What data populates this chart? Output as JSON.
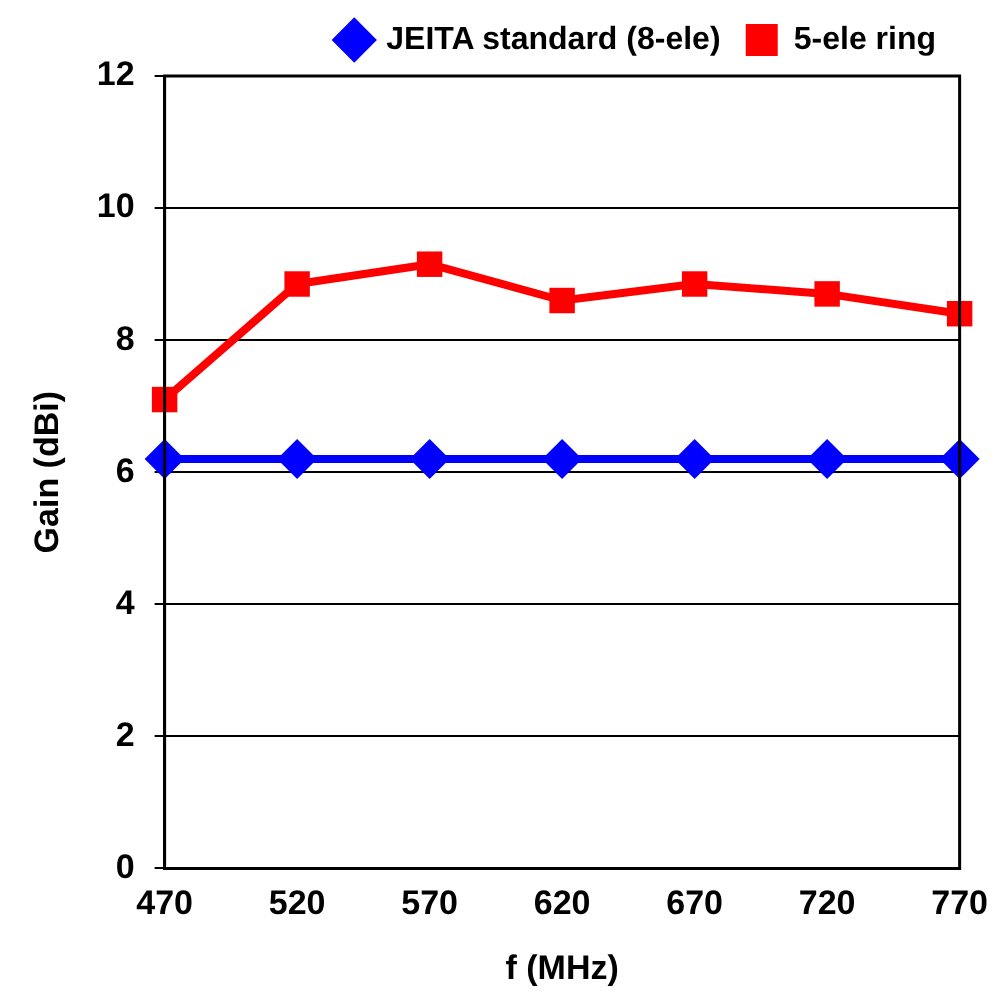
{
  "chart_data": {
    "type": "line",
    "xlabel": "f (MHz)",
    "ylabel": "Gain (dBi)",
    "x": [
      470,
      520,
      570,
      620,
      670,
      720,
      770
    ],
    "series": [
      {
        "name": "JEITA standard (8-ele)",
        "color": "#0000ff",
        "marker": "diamond",
        "values": [
          6.2,
          6.2,
          6.2,
          6.2,
          6.2,
          6.2,
          6.2
        ]
      },
      {
        "name": "5-ele ring",
        "color": "#ff0000",
        "marker": "square",
        "values": [
          7.1,
          8.85,
          9.15,
          8.6,
          8.85,
          8.7,
          8.4
        ]
      }
    ],
    "xlim": [
      470,
      770
    ],
    "xticks": [
      470,
      520,
      570,
      620,
      670,
      720,
      770
    ],
    "ylim": [
      0,
      12
    ],
    "yticks": [
      0,
      2,
      4,
      6,
      8,
      10,
      12
    ],
    "grid": "y",
    "legend": "top right",
    "line_style": "solid"
  }
}
